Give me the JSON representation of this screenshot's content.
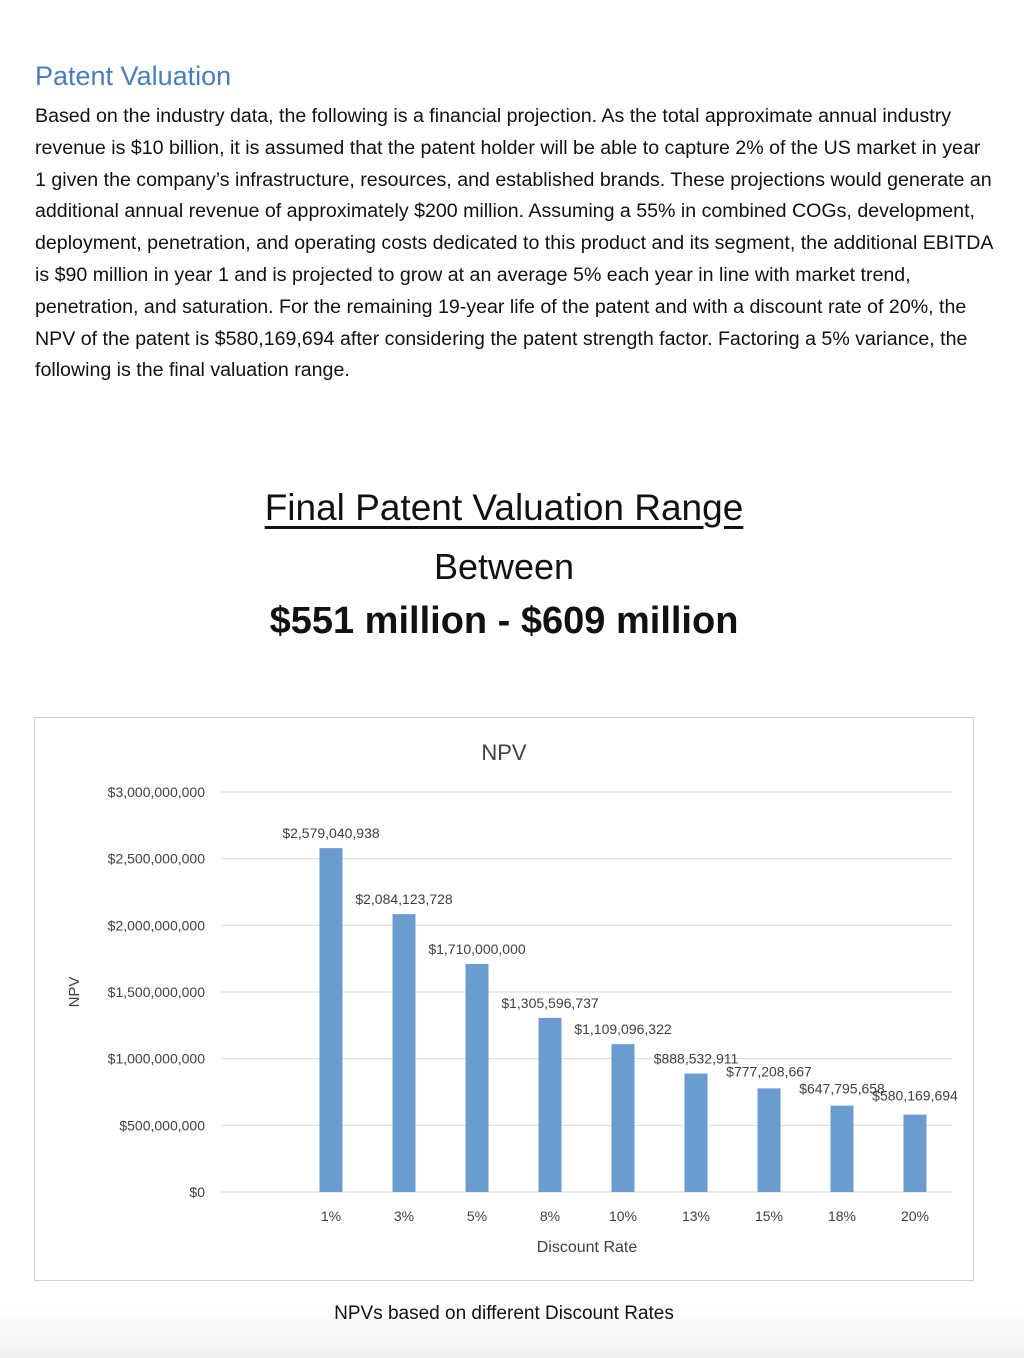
{
  "section": {
    "heading": "Patent Valuation",
    "paragraph": "Based on the industry data, the following is a financial projection. As the total approximate annual industry revenue is $10 billion, it is assumed that the patent holder will be able to capture 2% of the US market in year 1 given the company’s infrastructure, resources, and established brands. These projections would generate an additional annual revenue of approximately $200 million. Assuming a 55% in combined COGs, development, deployment, penetration, and operating costs dedicated to this product and its segment, the additional EBITDA is $90 million in year 1 and is projected to grow at an average 5% each year in line with market trend, penetration, and saturation. For the remaining 19-year life of the patent and with a discount rate of 20%, the NPV of the patent is $580,169,694 after considering the patent strength factor. Factoring a 5% variance, the following is the final valuation range."
  },
  "valuation_banner": {
    "title": "Final Patent Valuation Range",
    "between": "Between",
    "range": "$551 million - $609 million"
  },
  "caption": "NPVs based on different Discount Rates",
  "chart_data": {
    "type": "bar",
    "title": "NPV",
    "xlabel": "Discount Rate",
    "ylabel": "NPV",
    "categories": [
      "1%",
      "3%",
      "5%",
      "8%",
      "10%",
      "13%",
      "15%",
      "18%",
      "20%"
    ],
    "values": [
      2579040938,
      2084123728,
      1710000000,
      1305596737,
      1109096322,
      888532911,
      777208667,
      647795658,
      580169694
    ],
    "data_labels": [
      "$2,579,040,938",
      "$2,084,123,728",
      "$1,710,000,000",
      "$1,305,596,737",
      "$1,109,096,322",
      "$888,532,911",
      "$777,208,667",
      "$647,795,658",
      "$580,169,694"
    ],
    "yticks": [
      0,
      500000000,
      1000000000,
      1500000000,
      2000000000,
      2500000000,
      3000000000
    ],
    "ytick_labels": [
      "$0",
      "$500,000,000",
      "$1,000,000,000",
      "$1,500,000,000",
      "$2,000,000,000",
      "$2,500,000,000",
      "$3,000,000,000"
    ],
    "ylim": [
      0,
      3000000000
    ],
    "grid": true,
    "bar_color": "#6a9bd1",
    "grid_color": "#d9d9d9",
    "text_color": "#404040"
  }
}
